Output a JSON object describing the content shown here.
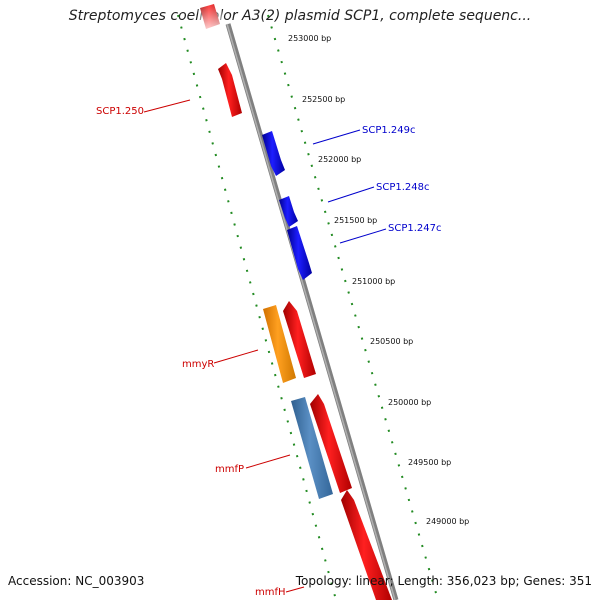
{
  "title": "Streptomyces coelicolor A3(2) plasmid SCP1, complete sequenc...",
  "footer": {
    "accession": "Accession: NC_003903",
    "topology": "Topology: linear; Length: 356,023 bp; Genes: 351"
  },
  "scale_labels": [
    "253000 bp",
    "252500 bp",
    "252000 bp",
    "251500 bp",
    "251000 bp",
    "250500 bp",
    "250000 bp",
    "249500 bp",
    "249000 bp"
  ],
  "gene_labels": [
    {
      "text": "SCP1.250",
      "color": "#cc0000"
    },
    {
      "text": "SCP1.249c",
      "color": "#0000cc"
    },
    {
      "text": "SCP1.248c",
      "color": "#0000cc"
    },
    {
      "text": "SCP1.247c",
      "color": "#0000cc"
    },
    {
      "text": "mmyR",
      "color": "#cc0000"
    },
    {
      "text": "mmfP",
      "color": "#cc0000"
    },
    {
      "text": "mmfH",
      "color": "#cc0000"
    }
  ],
  "colors": {
    "backbone": "#808080",
    "forward_gene": "#ee0000",
    "reverse_gene": "#0000dd",
    "regulator_gene": "#ff9900",
    "transporter_gene": "#4682b4",
    "ruler": "#228b22"
  }
}
